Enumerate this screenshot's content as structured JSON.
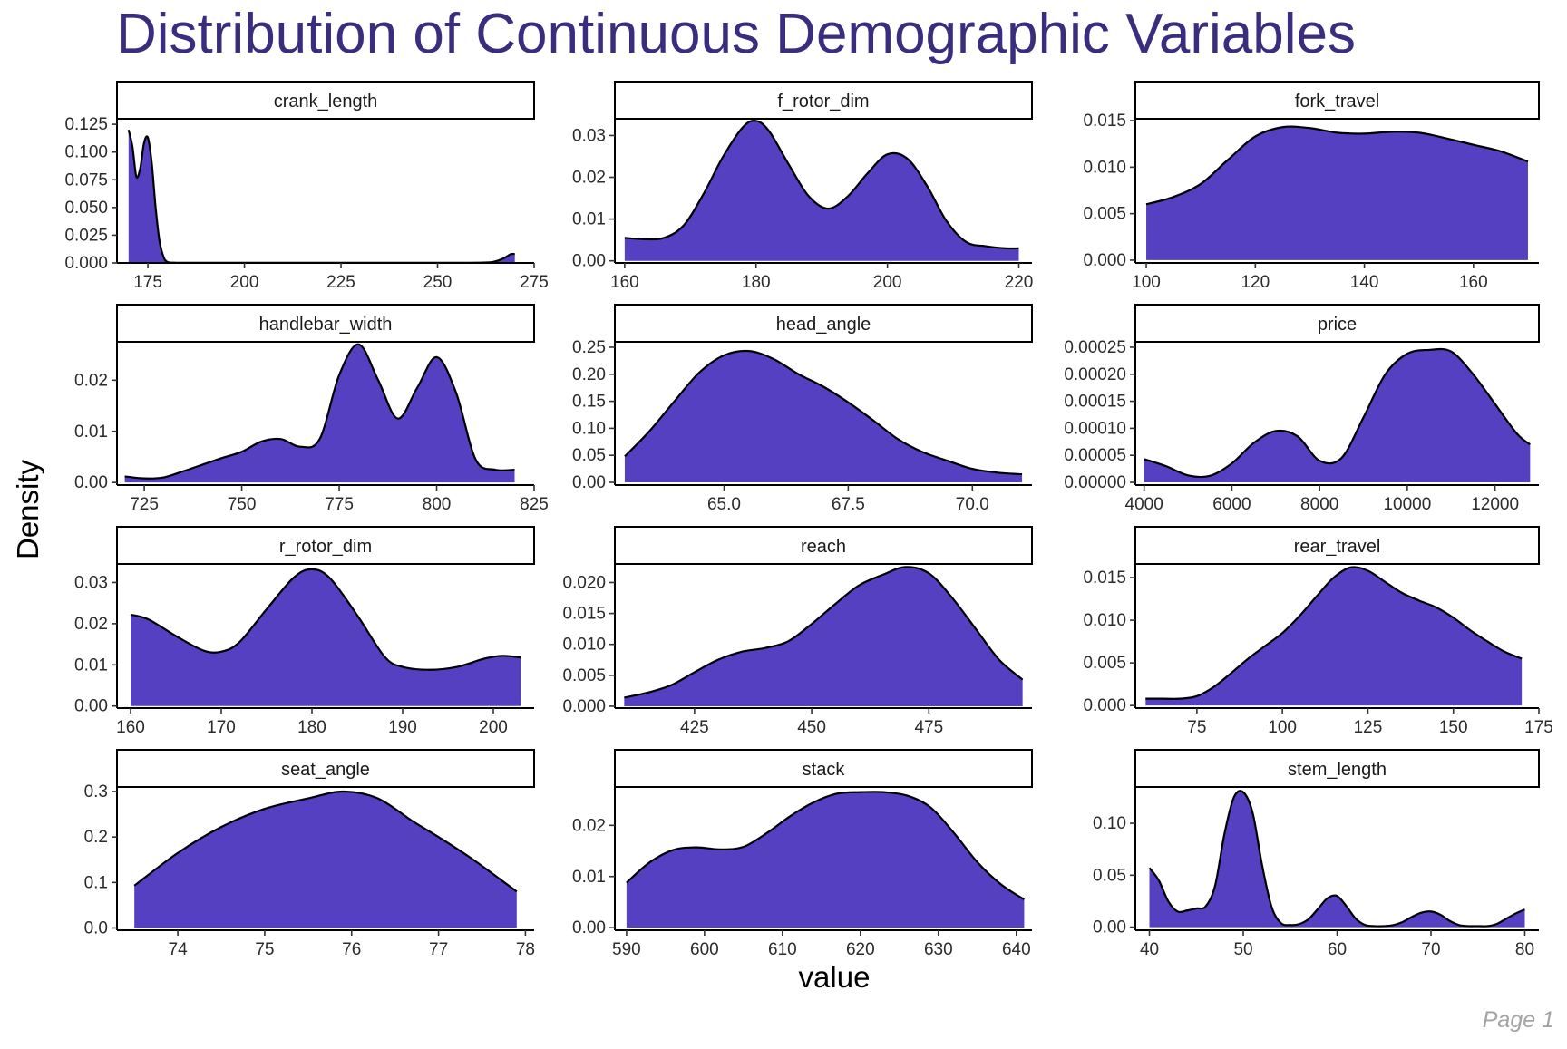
{
  "title": "Distribution of Continuous Demographic Variables",
  "footer": "Page 1",
  "colors": {
    "title": "#3a2c7e",
    "fill": "#5540c1",
    "line": "#000000"
  },
  "chart_data": {
    "type": "area",
    "title": "Distribution of Continuous Demographic Variables",
    "xlabel": "value",
    "ylabel": "Density",
    "grid": false,
    "legend": "none",
    "panels": [
      {
        "name": "crank_length",
        "xlim": [
          167,
          275
        ],
        "xticks": [
          175,
          200,
          225,
          250,
          275
        ],
        "xticklabels": [
          "175",
          "200",
          "225",
          "250",
          "275"
        ],
        "ylim": [
          0,
          0.13
        ],
        "yticks": [
          0,
          0.025,
          0.05,
          0.075,
          0.1,
          0.125
        ],
        "yticklabels": [
          "0.000",
          "0.025",
          "0.050",
          "0.075",
          "0.100",
          "0.125"
        ],
        "x": [
          170,
          171,
          172,
          173,
          174,
          175,
          176,
          177,
          178,
          179,
          180,
          182,
          185,
          200,
          225,
          250,
          262,
          265,
          267,
          268,
          269,
          270
        ],
        "y": [
          0.12,
          0.105,
          0.078,
          0.085,
          0.108,
          0.113,
          0.09,
          0.05,
          0.02,
          0.006,
          0.001,
          0.0002,
          0.0001,
          0.0001,
          0.0001,
          0.0001,
          0.0003,
          0.0015,
          0.004,
          0.006,
          0.008,
          0.008
        ]
      },
      {
        "name": "f_rotor_dim",
        "xlim": [
          158.5,
          222
        ],
        "xticks": [
          160,
          180,
          200,
          220
        ],
        "xticklabels": [
          "160",
          "180",
          "200",
          "220"
        ],
        "ylim": [
          -0.0005,
          0.034
        ],
        "yticks": [
          0,
          0.01,
          0.02,
          0.03
        ],
        "yticklabels": [
          "0.00",
          "0.01",
          "0.02",
          "0.03"
        ],
        "x": [
          160,
          163,
          166,
          169,
          172,
          175,
          178,
          180,
          182,
          185,
          188,
          191,
          194,
          197,
          200,
          203,
          206,
          209,
          212,
          215,
          218,
          220
        ],
        "y": [
          0.0055,
          0.0052,
          0.0055,
          0.0085,
          0.016,
          0.025,
          0.032,
          0.0335,
          0.031,
          0.023,
          0.0155,
          0.0125,
          0.0155,
          0.021,
          0.0255,
          0.0245,
          0.018,
          0.0095,
          0.0045,
          0.0035,
          0.003,
          0.003
        ]
      },
      {
        "name": "fork_travel",
        "xlim": [
          98,
          172
        ],
        "xticks": [
          100,
          120,
          140,
          160
        ],
        "xticklabels": [
          "100",
          "120",
          "140",
          "160"
        ],
        "ylim": [
          -0.0003,
          0.0152
        ],
        "yticks": [
          0,
          0.005,
          0.01,
          0.015
        ],
        "yticklabels": [
          "0.000",
          "0.005",
          "0.010",
          "0.015"
        ],
        "x": [
          100,
          105,
          110,
          115,
          120,
          125,
          130,
          135,
          140,
          145,
          150,
          155,
          160,
          165,
          170
        ],
        "y": [
          0.006,
          0.0068,
          0.0082,
          0.0108,
          0.0133,
          0.0143,
          0.0142,
          0.0137,
          0.0136,
          0.0138,
          0.0137,
          0.0131,
          0.0124,
          0.0117,
          0.0106
        ]
      },
      {
        "name": "handlebar_width",
        "xlim": [
          718,
          825
        ],
        "xticks": [
          725,
          750,
          775,
          800,
          825
        ],
        "xticklabels": [
          "725",
          "750",
          "775",
          "800",
          "825"
        ],
        "ylim": [
          -0.0005,
          0.0275
        ],
        "yticks": [
          0,
          0.01,
          0.02
        ],
        "yticklabels": [
          "0.00",
          "0.01",
          "0.02"
        ],
        "x": [
          720,
          725,
          730,
          735,
          740,
          745,
          750,
          755,
          760,
          765,
          770,
          775,
          780,
          785,
          790,
          795,
          800,
          805,
          810,
          815,
          820
        ],
        "y": [
          0.0012,
          0.0008,
          0.001,
          0.0022,
          0.0035,
          0.0048,
          0.006,
          0.008,
          0.0085,
          0.007,
          0.0085,
          0.021,
          0.027,
          0.02,
          0.0125,
          0.0185,
          0.0245,
          0.0175,
          0.0045,
          0.0025,
          0.0025
        ]
      },
      {
        "name": "head_angle",
        "xlim": [
          62.8,
          71.2
        ],
        "xticks": [
          65,
          67.5,
          70
        ],
        "xticklabels": [
          "65.0",
          "67.5",
          "70.0"
        ],
        "ylim": [
          -0.005,
          0.26
        ],
        "yticks": [
          0,
          0.05,
          0.1,
          0.15,
          0.2,
          0.25
        ],
        "yticklabels": [
          "0.00",
          "0.05",
          "0.10",
          "0.15",
          "0.20",
          "0.25"
        ],
        "x": [
          63,
          63.5,
          64,
          64.5,
          65,
          65.5,
          66,
          66.5,
          67,
          67.5,
          68,
          68.5,
          69,
          69.5,
          70,
          70.5,
          71
        ],
        "y": [
          0.048,
          0.095,
          0.15,
          0.203,
          0.235,
          0.243,
          0.228,
          0.2,
          0.177,
          0.148,
          0.115,
          0.08,
          0.056,
          0.04,
          0.025,
          0.018,
          0.015
        ]
      },
      {
        "name": "price",
        "xlim": [
          3800,
          13000
        ],
        "xticks": [
          4000,
          6000,
          8000,
          10000,
          12000
        ],
        "xticklabels": [
          "4000",
          "6000",
          "8000",
          "10000",
          "12000"
        ],
        "ylim": [
          -5e-06,
          0.00026
        ],
        "yticks": [
          0,
          5e-05,
          0.0001,
          0.00015,
          0.0002,
          0.00025
        ],
        "yticklabels": [
          "0.00000",
          "0.00005",
          "0.00010",
          "0.00015",
          "0.00020",
          "0.00025"
        ],
        "x": [
          4000,
          4500,
          5000,
          5500,
          6000,
          6500,
          7000,
          7500,
          8000,
          8500,
          9000,
          9500,
          10000,
          10500,
          11000,
          11500,
          12000,
          12500,
          12800
        ],
        "y": [
          4.3e-05,
          3e-05,
          1.3e-05,
          1.2e-05,
          3.5e-05,
          7.3e-05,
          9.5e-05,
          8.5e-05,
          4e-05,
          4.5e-05,
          0.00012,
          0.0002,
          0.000238,
          0.000245,
          0.000242,
          0.0002,
          0.000145,
          9e-05,
          7e-05
        ]
      },
      {
        "name": "r_rotor_dim",
        "xlim": [
          158.5,
          204.5
        ],
        "xticks": [
          160,
          170,
          180,
          190,
          200
        ],
        "xticklabels": [
          "160",
          "170",
          "180",
          "190",
          "200"
        ],
        "ylim": [
          -0.0005,
          0.0345
        ],
        "yticks": [
          0,
          0.01,
          0.02,
          0.03
        ],
        "yticklabels": [
          "0.00",
          "0.01",
          "0.02",
          "0.03"
        ],
        "x": [
          160,
          162,
          165,
          168,
          170,
          172,
          175,
          178,
          180,
          182,
          185,
          188,
          190,
          193,
          196,
          199,
          201,
          203
        ],
        "y": [
          0.0222,
          0.021,
          0.017,
          0.0135,
          0.0132,
          0.0155,
          0.0235,
          0.0312,
          0.0332,
          0.031,
          0.022,
          0.012,
          0.0095,
          0.0088,
          0.0095,
          0.0115,
          0.0122,
          0.0118
        ]
      },
      {
        "name": "reach",
        "xlim": [
          408,
          497
        ],
        "xticks": [
          425,
          450,
          475
        ],
        "xticklabels": [
          "425",
          "450",
          "475"
        ],
        "ylim": [
          -0.0003,
          0.023
        ],
        "yticks": [
          0,
          0.005,
          0.01,
          0.015,
          0.02
        ],
        "yticklabels": [
          "0.000",
          "0.005",
          "0.010",
          "0.015",
          "0.020"
        ],
        "x": [
          410,
          415,
          420,
          425,
          430,
          435,
          440,
          445,
          450,
          455,
          460,
          465,
          470,
          475,
          480,
          485,
          490,
          495
        ],
        "y": [
          0.0014,
          0.0022,
          0.0034,
          0.0055,
          0.0075,
          0.0088,
          0.0094,
          0.0105,
          0.0133,
          0.0165,
          0.0195,
          0.0212,
          0.0225,
          0.0215,
          0.0175,
          0.0125,
          0.0075,
          0.0043
        ]
      },
      {
        "name": "rear_travel",
        "xlim": [
          57,
          175
        ],
        "xticks": [
          75,
          100,
          125,
          150,
          175
        ],
        "xticklabels": [
          "75",
          "100",
          "125",
          "150",
          "175"
        ],
        "ylim": [
          -0.0003,
          0.0166
        ],
        "yticks": [
          0,
          0.005,
          0.01,
          0.015
        ],
        "yticklabels": [
          "0.000",
          "0.005",
          "0.010",
          "0.015"
        ],
        "x": [
          60,
          65,
          70,
          75,
          80,
          85,
          90,
          95,
          100,
          105,
          110,
          115,
          120,
          125,
          130,
          135,
          140,
          145,
          150,
          155,
          160,
          165,
          170
        ],
        "y": [
          0.0008,
          0.0008,
          0.0008,
          0.0011,
          0.0022,
          0.0038,
          0.0055,
          0.007,
          0.0085,
          0.0105,
          0.0128,
          0.015,
          0.0162,
          0.0158,
          0.0145,
          0.0132,
          0.0123,
          0.0115,
          0.0103,
          0.0088,
          0.0075,
          0.0063,
          0.0055
        ]
      },
      {
        "name": "seat_angle",
        "xlim": [
          73.3,
          78.1
        ],
        "xticks": [
          74,
          75,
          76,
          77,
          78
        ],
        "xticklabels": [
          "74",
          "75",
          "76",
          "77",
          "78"
        ],
        "ylim": [
          -0.005,
          0.31
        ],
        "yticks": [
          0,
          0.1,
          0.2,
          0.3
        ],
        "yticklabels": [
          "0.0",
          "0.1",
          "0.2",
          "0.3"
        ],
        "x": [
          73.5,
          74,
          74.5,
          75,
          75.5,
          75.9,
          76.3,
          76.7,
          77,
          77.4,
          77.9
        ],
        "y": [
          0.093,
          0.165,
          0.222,
          0.262,
          0.285,
          0.3,
          0.285,
          0.235,
          0.2,
          0.15,
          0.08
        ]
      },
      {
        "name": "stack",
        "xlim": [
          588.5,
          642
        ],
        "xticks": [
          590,
          600,
          610,
          620,
          630,
          640
        ],
        "xticklabels": [
          "590",
          "600",
          "610",
          "620",
          "630",
          "640"
        ],
        "ylim": [
          -0.0005,
          0.0275
        ],
        "yticks": [
          0,
          0.01,
          0.02
        ],
        "yticklabels": [
          "0.00",
          "0.01",
          "0.02"
        ],
        "x": [
          590,
          593,
          596,
          599,
          602,
          605,
          608,
          611,
          614,
          617,
          620,
          623,
          626,
          629,
          632,
          635,
          638,
          641
        ],
        "y": [
          0.0088,
          0.0128,
          0.0152,
          0.0157,
          0.0153,
          0.0158,
          0.0185,
          0.0218,
          0.0245,
          0.0262,
          0.0265,
          0.0265,
          0.0258,
          0.0235,
          0.0185,
          0.0128,
          0.0085,
          0.0055
        ]
      },
      {
        "name": "stem_length",
        "xlim": [
          38.5,
          81.5
        ],
        "xticks": [
          40,
          50,
          60,
          70,
          80
        ],
        "xticklabels": [
          "40",
          "50",
          "60",
          "70",
          "80"
        ],
        "ylim": [
          -0.003,
          0.135
        ],
        "yticks": [
          0,
          0.05,
          0.1
        ],
        "yticklabels": [
          "0.00",
          "0.05",
          "0.10"
        ],
        "x": [
          40,
          41,
          42,
          43,
          44,
          45,
          46,
          47,
          48,
          49,
          50,
          51,
          52,
          53,
          54,
          55,
          56,
          57,
          58,
          59,
          60,
          61,
          62,
          63,
          64,
          65,
          66,
          67,
          68,
          69,
          70,
          71,
          72,
          73,
          74,
          75,
          76,
          77,
          78,
          79,
          80
        ],
        "y": [
          0.057,
          0.045,
          0.025,
          0.015,
          0.016,
          0.018,
          0.02,
          0.04,
          0.09,
          0.125,
          0.13,
          0.11,
          0.06,
          0.02,
          0.004,
          0.002,
          0.003,
          0.008,
          0.018,
          0.028,
          0.03,
          0.02,
          0.008,
          0.002,
          0.001,
          0.001,
          0.002,
          0.005,
          0.01,
          0.014,
          0.015,
          0.012,
          0.006,
          0.002,
          0.001,
          0.001,
          0.001,
          0.003,
          0.008,
          0.013,
          0.017
        ]
      }
    ]
  }
}
